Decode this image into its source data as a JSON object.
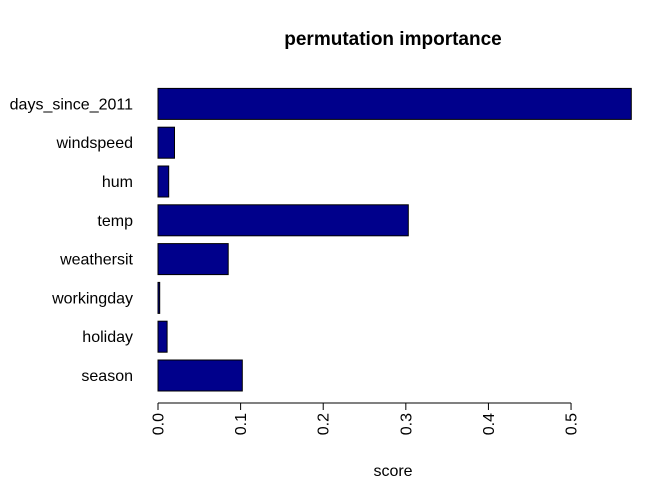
{
  "chart_data": {
    "type": "bar",
    "orientation": "horizontal",
    "title": "permutation importance",
    "xlabel": "score",
    "ylabel": "",
    "categories": [
      "season",
      "holiday",
      "workingday",
      "weathersit",
      "temp",
      "hum",
      "windspeed",
      "days_since_2011"
    ],
    "values": [
      0.102,
      0.011,
      0.002,
      0.085,
      0.303,
      0.013,
      0.02,
      0.573
    ],
    "xlim": [
      0,
      0.575
    ],
    "xticks": [
      "0.0",
      "0.1",
      "0.2",
      "0.3",
      "0.4",
      "0.5"
    ],
    "bar_color": "#00008b",
    "bar_edge_color": "#000000",
    "grid": false,
    "legend": "none"
  }
}
